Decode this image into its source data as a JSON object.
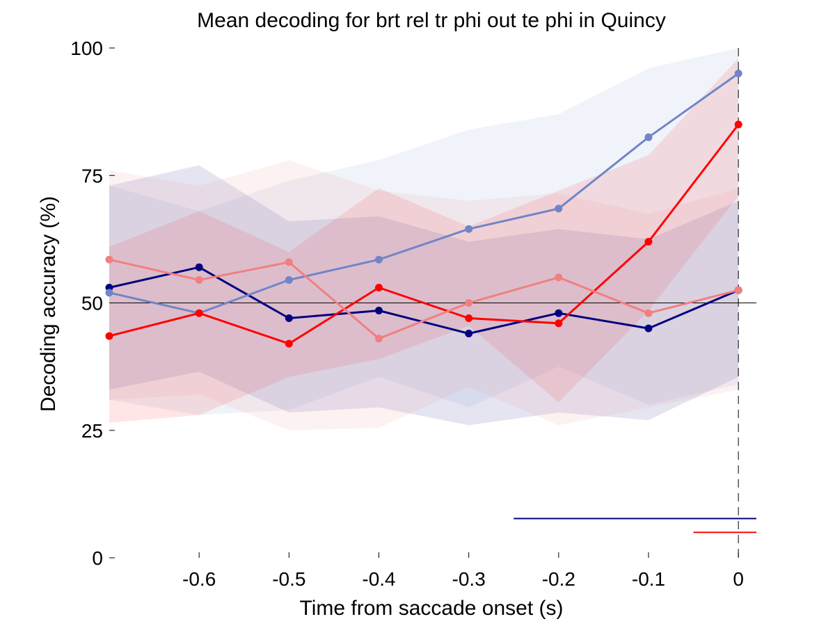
{
  "chart_data": {
    "type": "line",
    "title": "Mean decoding for brt rel tr phi out te phi in  Quincy",
    "xlabel": "Time from saccade onset (s)",
    "ylabel": "Decoding accuracy (%)",
    "xlim": [
      -0.7,
      0.02
    ],
    "ylim": [
      0,
      100
    ],
    "xticks": [
      -0.6,
      -0.5,
      -0.4,
      -0.3,
      -0.2,
      -0.1,
      0
    ],
    "xtick_labels": [
      "-0.6",
      "-0.5",
      "-0.4",
      "-0.3",
      "-0.2",
      "-0.1",
      "0"
    ],
    "yticks": [
      0,
      25,
      50,
      75,
      100
    ],
    "ytick_labels": [
      "0",
      "25",
      "50",
      "75",
      "100"
    ],
    "chance_level": 50,
    "event_line_x": 0,
    "grid": false,
    "legend": "none",
    "x": [
      -0.7,
      -0.6,
      -0.5,
      -0.4,
      -0.3,
      -0.2,
      -0.1,
      0
    ],
    "series": [
      {
        "color": "#000080",
        "lower": [
          33,
          36.5,
          28.5,
          29.5,
          26,
          28.5,
          27,
          35.5
        ],
        "upper": [
          73,
          77,
          66,
          67,
          62,
          64.5,
          62.5,
          70
        ],
        "values": [
          53,
          57,
          47,
          48.5,
          44,
          48,
          45,
          52.5
        ]
      },
      {
        "color": "#7085c7",
        "lower": [
          31,
          28,
          29,
          35.5,
          29.5,
          37.5,
          30,
          34
        ],
        "upper": [
          73,
          68,
          74,
          78,
          84,
          87,
          96,
          100
        ],
        "values": [
          52,
          48,
          54.5,
          58.5,
          64.5,
          68.5,
          82.5,
          95
        ]
      },
      {
        "color": "#ff0000",
        "lower": [
          26.5,
          28,
          35.5,
          39,
          45.5,
          30.5,
          48.5,
          71
        ],
        "upper": [
          61,
          68,
          60,
          72.5,
          65,
          72,
          79,
          98
        ],
        "values": [
          43.5,
          48,
          42,
          53,
          47,
          46,
          62,
          85
        ]
      },
      {
        "color": "#f08080",
        "lower": [
          31,
          32,
          25,
          25.5,
          33.5,
          26,
          29.5,
          33
        ],
        "upper": [
          76,
          73,
          78,
          72,
          70,
          71.5,
          67.5,
          72.5
        ],
        "values": [
          58.5,
          54.5,
          58,
          43,
          50,
          55,
          48,
          52.5
        ]
      }
    ],
    "significance_bars": [
      {
        "color": "#000080",
        "x_start": -0.25,
        "x_end": 0.02,
        "y": 7.7
      },
      {
        "color": "#ff0000",
        "x_start": -0.05,
        "x_end": 0.02,
        "y": 5
      }
    ]
  }
}
